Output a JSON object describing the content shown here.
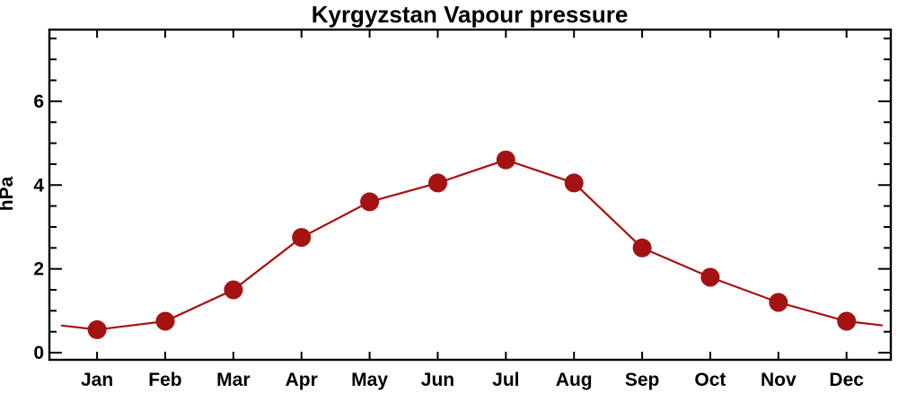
{
  "chart_data": {
    "type": "line",
    "title": "Kyrgyzstan Vapour pressure",
    "xlabel": "",
    "ylabel": "hPa",
    "categories": [
      "Jan",
      "Feb",
      "Mar",
      "Apr",
      "May",
      "Jun",
      "Jul",
      "Aug",
      "Sep",
      "Oct",
      "Nov",
      "Dec"
    ],
    "series": [
      {
        "name": "Vapour pressure (hPa)",
        "values": [
          0.55,
          0.75,
          1.5,
          2.75,
          3.6,
          4.05,
          4.6,
          4.05,
          2.5,
          1.8,
          1.2,
          0.75
        ]
      }
    ],
    "wrap_line": {
      "left_value": 0.65,
      "right_value": 0.65,
      "offset_months": 0.53
    },
    "ylim": [
      -0.17,
      7.71
    ],
    "yticks_major": [
      0,
      2,
      4,
      6
    ],
    "y_minor_step": 0.5,
    "y_minor_min": 0,
    "y_minor_max": 7.5,
    "grid": "off",
    "legend": "none",
    "marker": "filled-circle",
    "colors": {
      "line": "#A41212",
      "marker": "#A41212",
      "axis": "#000000",
      "background": "#FFFFFF"
    }
  }
}
